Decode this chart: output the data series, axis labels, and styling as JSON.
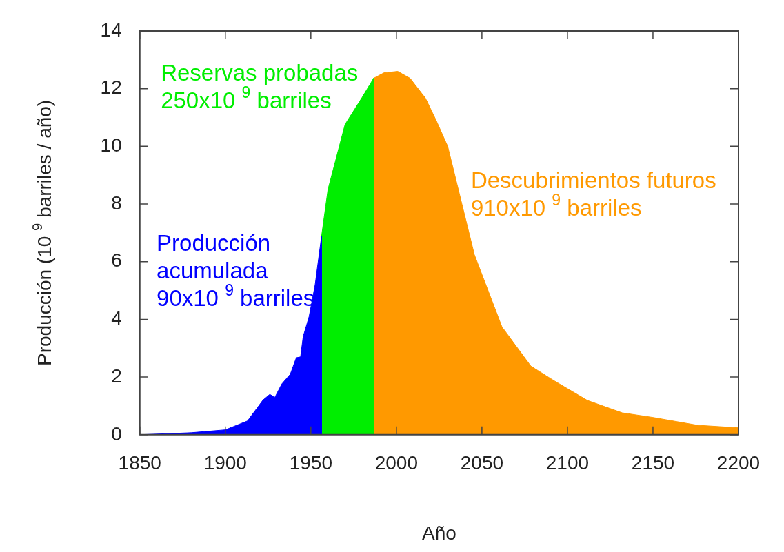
{
  "chart_data": {
    "type": "area",
    "xlabel": "Año",
    "ylabel": "Producción (10 $^{9}$ barriles / año)",
    "xlim": [
      1850,
      2200
    ],
    "xticks": [
      1850,
      1900,
      1950,
      2000,
      2050,
      2100,
      2150,
      2200
    ],
    "ylim": [
      0,
      14
    ],
    "yticks": [
      0,
      2,
      4,
      6,
      8,
      10,
      12,
      14
    ],
    "grid": false,
    "legend": false,
    "series": [
      {
        "color": "#0000ff",
        "x": [
          1850,
          1880,
          1900,
          1913,
          1922,
          1926,
          1929,
          1933,
          1938,
          1941.5,
          1944,
          1945.5,
          1949,
          1952.5,
          1956.3,
          1956.3
        ],
        "values": [
          0,
          0.07,
          0.17,
          0.48,
          1.2,
          1.4,
          1.3,
          1.76,
          2.1,
          2.67,
          2.7,
          3.4,
          4.1,
          5.2,
          6.9,
          0
        ]
      },
      {
        "color": "#00ee00",
        "x": [
          1956.3,
          1956.3,
          1960,
          1970,
          1980,
          1986.7,
          1986.7
        ],
        "values": [
          0,
          6.9,
          8.5,
          10.76,
          11.7,
          12.36,
          0
        ]
      },
      {
        "color": "#ff9900",
        "x": [
          1986.7,
          1986.7,
          1992.7,
          2000.8,
          2008,
          2017,
          2023.4,
          2030,
          2045.6,
          2061.7,
          2078.6,
          2092,
          2111.7,
          2132,
          2150,
          2176,
          2200
        ],
        "values": [
          0,
          12.36,
          12.55,
          12.6,
          12.36,
          11.67,
          10.88,
          10.0,
          6.24,
          3.74,
          2.38,
          1.88,
          1.19,
          0.76,
          0.6,
          0.33,
          0.24
        ]
      }
    ],
    "annotations": [
      "Producción\nacumulada\n90x10 $^{9}$ barriles",
      "Reservas probadas\n250x10 $^{9}$ barriles",
      "Descubrimientos futuros\n910x10 $^{9}$ barriles"
    ]
  }
}
